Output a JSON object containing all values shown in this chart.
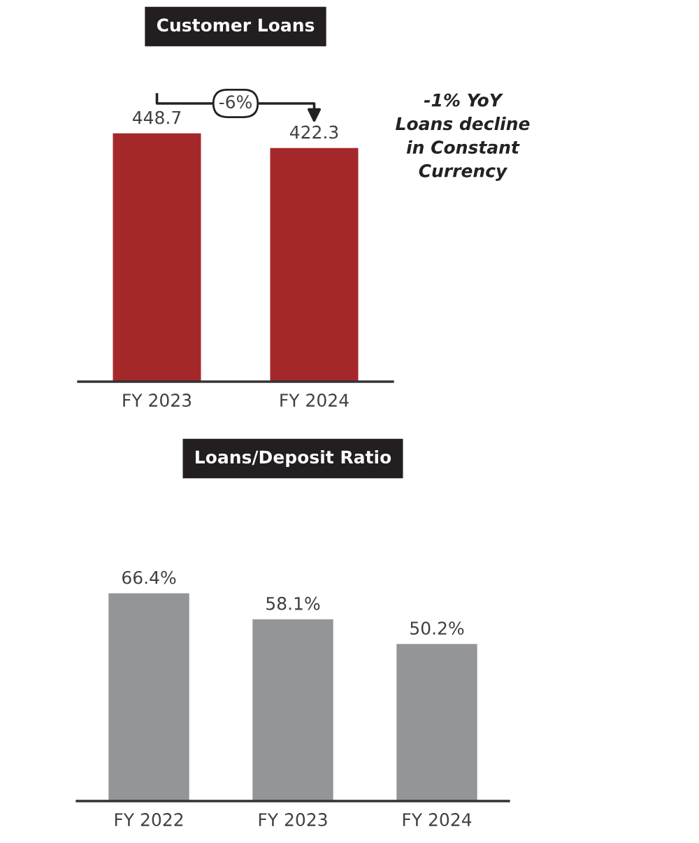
{
  "chart_data": [
    {
      "type": "bar",
      "title": "Customer Loans",
      "categories": [
        "FY 2023",
        "FY 2024"
      ],
      "values": [
        448.7,
        422.3
      ],
      "color": "#a4282a",
      "data_labels": true,
      "tick_labels": "x",
      "grid": false,
      "legend": false,
      "annotations": [
        "-6%",
        "-1% YoY\nLoans decline\nin Constant\nCurrency"
      ]
    },
    {
      "type": "bar",
      "title": "Loans/Deposit Ratio",
      "categories": [
        "FY 2022",
        "FY 2023",
        "FY 2024"
      ],
      "values": [
        66.4,
        58.1,
        50.2
      ],
      "color": "#939598",
      "value_labels": [
        "66.4%",
        "58.1%",
        "50.2%"
      ],
      "tick_labels": "x",
      "grid": false,
      "legend": false
    }
  ]
}
